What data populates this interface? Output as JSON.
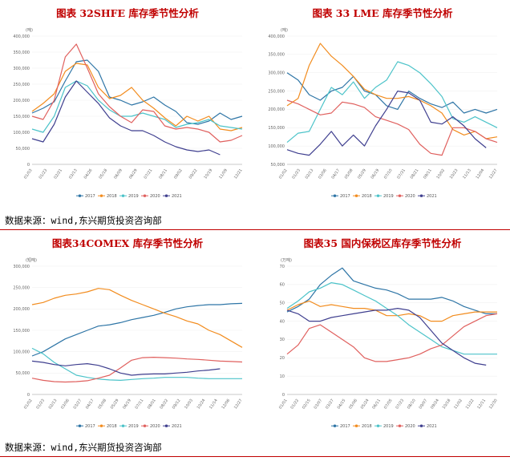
{
  "source_text": "数据来源：wind,东兴期货投资咨询部",
  "series_colors": [
    "#2e75a6",
    "#f28c1e",
    "#4cc3c9",
    "#e0605e",
    "#3f3f8f"
  ],
  "chart_data": [
    {
      "type": "line",
      "title": "图表 32SHFE 库存季节性分析",
      "unit": "(吨)",
      "ylim": [
        0,
        400000
      ],
      "yticks": [
        "0",
        "50,000",
        "100,000",
        "150,000",
        "200,000",
        "250,000",
        "300,000",
        "350,000",
        "400,000"
      ],
      "xticks": [
        "01/03",
        "01/23",
        "02/21",
        "03/13",
        "04/26",
        "05/18",
        "06/09",
        "06/29",
        "07/21",
        "08/11",
        "09/02",
        "09/22",
        "10/19",
        "11/09",
        "12/21"
      ],
      "legend": [
        "2017",
        "2018",
        "2019",
        "2020",
        "2021"
      ],
      "series": [
        {
          "name": "2017",
          "values": [
            160000,
            175000,
            195000,
            260000,
            320000,
            325000,
            290000,
            210000,
            200000,
            185000,
            195000,
            210000,
            185000,
            165000,
            130000,
            125000,
            135000,
            160000,
            140000,
            150000
          ]
        },
        {
          "name": "2018",
          "values": [
            165000,
            190000,
            220000,
            290000,
            315000,
            310000,
            240000,
            205000,
            215000,
            240000,
            200000,
            175000,
            145000,
            120000,
            150000,
            135000,
            150000,
            110000,
            105000,
            115000
          ]
        },
        {
          "name": "2019",
          "values": [
            110000,
            100000,
            150000,
            240000,
            260000,
            245000,
            200000,
            170000,
            150000,
            150000,
            160000,
            150000,
            140000,
            115000,
            125000,
            130000,
            140000,
            120000,
            115000,
            110000
          ]
        },
        {
          "name": "2020",
          "values": [
            150000,
            140000,
            200000,
            335000,
            375000,
            300000,
            220000,
            180000,
            150000,
            130000,
            170000,
            165000,
            120000,
            110000,
            115000,
            110000,
            100000,
            70000,
            75000,
            90000
          ]
        },
        {
          "name": "2021",
          "values": [
            80000,
            70000,
            125000,
            210000,
            260000,
            225000,
            190000,
            145000,
            120000,
            105000,
            105000,
            90000,
            70000,
            55000,
            45000,
            40000,
            45000,
            30000,
            null,
            null
          ]
        }
      ]
    },
    {
      "type": "line",
      "title": "图表 33 LME 库存季节性分析",
      "unit": "(吨)",
      "ylim": [
        50000,
        400000
      ],
      "yticks": [
        "50,000",
        "100,000",
        "150,000",
        "200,000",
        "250,000",
        "300,000",
        "350,000",
        "400,000"
      ],
      "xticks": [
        "01/02",
        "01/23",
        "02/13",
        "03/06",
        "04/17",
        "05/08",
        "05/29",
        "06/19",
        "07/10",
        "07/31",
        "08/21",
        "09/11",
        "10/02",
        "10/23",
        "11/13",
        "12/04",
        "12/27"
      ],
      "legend": [
        "2017",
        "2018",
        "2019",
        "2020",
        "2021"
      ],
      "series": [
        {
          "name": "2017",
          "values": [
            300000,
            280000,
            240000,
            225000,
            250000,
            260000,
            290000,
            250000,
            240000,
            210000,
            200000,
            250000,
            230000,
            215000,
            205000,
            220000,
            190000,
            200000,
            190000,
            200000
          ]
        },
        {
          "name": "2018",
          "values": [
            210000,
            230000,
            320000,
            380000,
            345000,
            320000,
            290000,
            255000,
            240000,
            230000,
            230000,
            235000,
            225000,
            210000,
            190000,
            145000,
            130000,
            140000,
            120000,
            125000
          ]
        },
        {
          "name": "2019",
          "values": [
            110000,
            135000,
            140000,
            200000,
            260000,
            240000,
            275000,
            230000,
            260000,
            280000,
            330000,
            320000,
            300000,
            270000,
            235000,
            175000,
            165000,
            180000,
            165000,
            150000
          ]
        },
        {
          "name": "2020",
          "values": [
            225000,
            215000,
            200000,
            185000,
            190000,
            220000,
            215000,
            205000,
            180000,
            170000,
            160000,
            145000,
            105000,
            80000,
            75000,
            150000,
            150000,
            140000,
            120000,
            110000
          ]
        },
        {
          "name": "2021",
          "values": [
            90000,
            80000,
            75000,
            105000,
            140000,
            100000,
            130000,
            100000,
            155000,
            200000,
            250000,
            245000,
            225000,
            165000,
            160000,
            180000,
            155000,
            120000,
            95000,
            null
          ]
        }
      ]
    },
    {
      "type": "line",
      "title": "图表34COMEX 库存季节性分析",
      "unit": "(短吨)",
      "ylim": [
        0,
        300000
      ],
      "yticks": [
        "0",
        "50,000",
        "100,000",
        "150,000",
        "200,000",
        "250,000",
        "300,000"
      ],
      "xticks": [
        "01/02",
        "01/23",
        "02/13",
        "03/06",
        "03/27",
        "04/17",
        "05/08",
        "05/29",
        "06/19",
        "07/11",
        "08/01",
        "08/22",
        "09/12",
        "10/03",
        "10/24",
        "11/14",
        "12/06",
        "12/27"
      ],
      "legend": [
        "2017",
        "2018",
        "2019",
        "2020",
        "2021"
      ],
      "series": [
        {
          "name": "2017",
          "values": [
            90000,
            100000,
            115000,
            130000,
            140000,
            150000,
            160000,
            163000,
            168000,
            175000,
            180000,
            185000,
            192000,
            200000,
            205000,
            208000,
            210000,
            210000,
            212000,
            213000
          ]
        },
        {
          "name": "2018",
          "values": [
            210000,
            215000,
            225000,
            232000,
            235000,
            240000,
            248000,
            245000,
            232000,
            220000,
            210000,
            200000,
            190000,
            182000,
            172000,
            165000,
            150000,
            140000,
            125000,
            110000
          ]
        },
        {
          "name": "2019",
          "values": [
            108000,
            95000,
            75000,
            60000,
            45000,
            40000,
            36000,
            34000,
            33000,
            35000,
            37000,
            38000,
            40000,
            40000,
            40000,
            38000,
            37000,
            37000,
            37000,
            37000
          ]
        },
        {
          "name": "2020",
          "values": [
            38000,
            33000,
            30000,
            29000,
            30000,
            32000,
            38000,
            45000,
            62000,
            80000,
            86000,
            87000,
            86000,
            85000,
            83000,
            82000,
            80000,
            78000,
            77000,
            76000
          ]
        },
        {
          "name": "2021",
          "values": [
            78000,
            75000,
            70000,
            67000,
            70000,
            72000,
            68000,
            60000,
            50000,
            45000,
            47000,
            48000,
            48000,
            50000,
            52000,
            55000,
            57000,
            60000,
            null,
            null
          ]
        }
      ]
    },
    {
      "type": "line",
      "title": "图表35 国内保税区库存季节性分析",
      "unit": "(万吨)",
      "ylim": [
        0,
        70
      ],
      "yticks": [
        "0",
        "10",
        "20",
        "30",
        "40",
        "50",
        "60",
        "70"
      ],
      "xticks": [
        "01/01",
        "01/22",
        "02/15",
        "03/07",
        "03/27",
        "04/15",
        "05/06",
        "05/24",
        "06/11",
        "07/05",
        "07/23",
        "08/10",
        "09/07",
        "09/24",
        "10/18",
        "11/02",
        "11/22",
        "12/11",
        "12/30"
      ],
      "legend": [
        "2017",
        "2018",
        "2019",
        "2020",
        "2021"
      ],
      "series": [
        {
          "name": "2017",
          "values": [
            45,
            48,
            52,
            60,
            65,
            69,
            62,
            60,
            58,
            57,
            55,
            52,
            52,
            52,
            53,
            51,
            48,
            46,
            44,
            44
          ]
        },
        {
          "name": "2018",
          "values": [
            46,
            49,
            51,
            48,
            49,
            48,
            47,
            47,
            46,
            43,
            43,
            44,
            43,
            40,
            40,
            43,
            44,
            45,
            45,
            45
          ]
        },
        {
          "name": "2019",
          "values": [
            47,
            51,
            56,
            58,
            61,
            60,
            57,
            54,
            51,
            47,
            43,
            38,
            34,
            30,
            26,
            24,
            22,
            22,
            22,
            22
          ]
        },
        {
          "name": "2020",
          "values": [
            22,
            27,
            36,
            38,
            34,
            30,
            26,
            20,
            18,
            18,
            19,
            20,
            22,
            25,
            27,
            32,
            37,
            40,
            43,
            44
          ]
        },
        {
          "name": "2021",
          "values": [
            46,
            44,
            40,
            40,
            42,
            43,
            44,
            45,
            46,
            46,
            47,
            46,
            42,
            35,
            28,
            24,
            20,
            17,
            16,
            null
          ]
        }
      ]
    }
  ]
}
